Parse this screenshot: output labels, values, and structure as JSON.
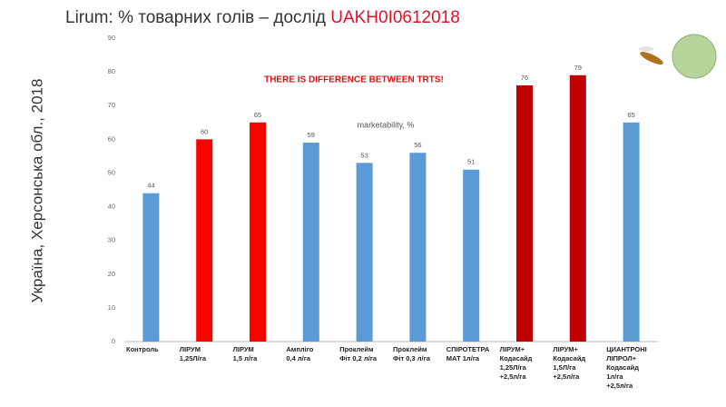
{
  "side_label": "Україна, Херсонська обл., 2018",
  "chart_data": {
    "type": "bar",
    "title": "Lirum: % товарних голів – дослід",
    "title_code": "UAKH0I0612018",
    "subtitle": "marketability, %",
    "annotation": "THERE IS DIFFERENCE BETWEEN TRTS!",
    "categories": [
      "Контроль",
      "ЛІРУМ\n1,25Л/га",
      "ЛІРУМ\n1,5 л/га",
      "Ампліго\n0,4 л/га",
      "Проклейм\nФіт 0,2 л/га",
      "Проклейм\nФіт 0,3 л/га",
      "СПІРОТЕТРА\nМАТ 1л/га",
      "ЛІРУМ+\nКодасайд\n1,25Л/га\n+2,5л/га",
      "ЛІРУМ+\nКодасайд\n1,5Л/га\n+2,5л/га",
      "ЦИАНТРОНІ\nЛІПРОЛ+\nКодасайд\n1л/га\n+2,5л/га"
    ],
    "values": [
      44,
      60,
      65,
      59,
      53,
      56,
      51,
      76,
      79,
      65
    ],
    "colors": [
      "#5b9bd5",
      "#ff0000",
      "#ff0000",
      "#5b9bd5",
      "#5b9bd5",
      "#5b9bd5",
      "#5b9bd5",
      "#c00000",
      "#c00000",
      "#5b9bd5"
    ],
    "ylim": [
      0,
      90
    ],
    "yticks": [
      0,
      10,
      20,
      30,
      40,
      50,
      60,
      70,
      80,
      90
    ],
    "grid": false
  }
}
